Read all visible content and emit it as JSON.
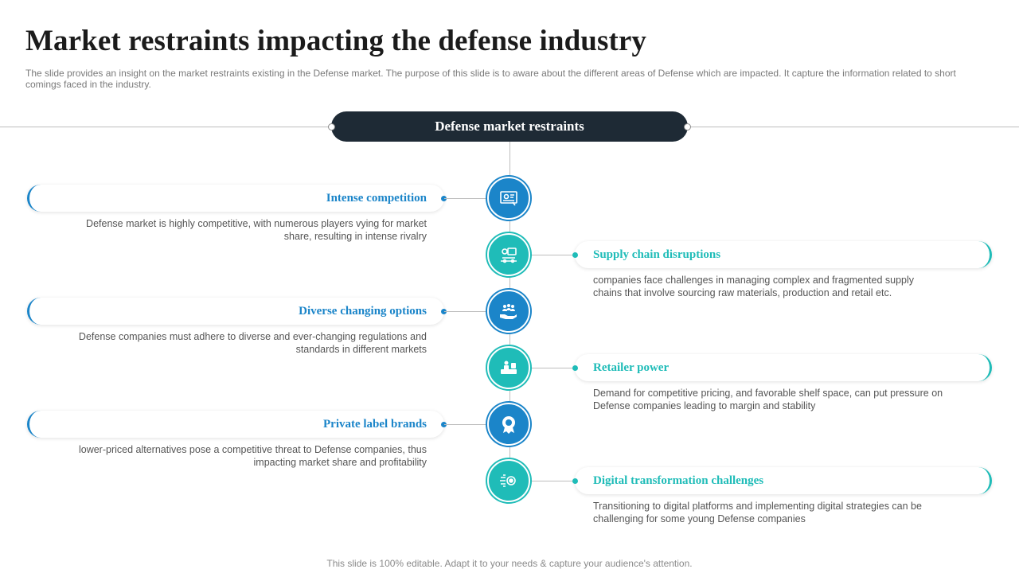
{
  "title": "Market restraints impacting the defense industry",
  "subtitle": "The slide provides an insight on the market restraints existing in the Defense market. The purpose of this slide is to aware about the different areas of Defense which are impacted. It capture the information related to short comings faced in the industry.",
  "header": "Defense market restraints",
  "colors": {
    "blue": "#1b85c9",
    "teal": "#1fbcb8",
    "dark": "#1e2a35"
  },
  "items": [
    {
      "title": "Intense competition",
      "desc": "Defense market is highly competitive, with numerous players vying for market share, resulting in intense rivalry",
      "icon": "presentation-icon"
    },
    {
      "title": "Supply chain disruptions",
      "desc": "companies face challenges in managing complex and fragmented supply chains that involve sourcing raw materials, production and retail etc.",
      "icon": "delivery-truck-icon"
    },
    {
      "title": "Diverse changing options",
      "desc": "Defense companies must adhere to diverse and ever-changing regulations and standards in different markets",
      "icon": "people-in-hand-icon"
    },
    {
      "title": "Retailer power",
      "desc": "Demand for competitive pricing, and favorable shelf space, can put pressure on Defense companies leading to margin and stability",
      "icon": "retailer-desk-icon"
    },
    {
      "title": "Private label brands",
      "desc": "lower-priced alternatives pose a competitive threat to Defense companies, thus impacting market share and profitability",
      "icon": "badge-icon"
    },
    {
      "title": "Digital transformation challenges",
      "desc": "Transitioning to digital platforms and implementing digital strategies can be challenging for some young Defense companies",
      "icon": "digital-gear-icon"
    }
  ],
  "footer": "This slide is 100% editable. Adapt it to your needs & capture your audience's attention."
}
